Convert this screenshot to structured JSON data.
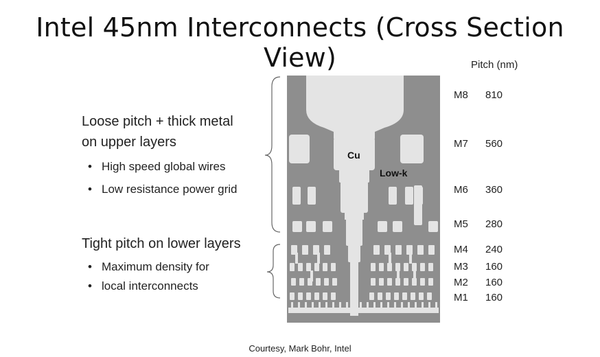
{
  "title": "Intel 45nm Interconnects (Cross Section View)",
  "upper": {
    "heading_lines": [
      "Loose pitch + thick metal",
      "on upper layers"
    ],
    "bullets": [
      "High speed global wires",
      "Low resistance power grid"
    ]
  },
  "lower": {
    "heading": "Tight pitch on lower layers",
    "bullet_lines": [
      "Maximum density for",
      "local interconnects"
    ]
  },
  "image_labels": {
    "metal": "Cu",
    "dielectric": "Low-k"
  },
  "pitch_header": "Pitch (nm)",
  "layers": [
    {
      "name": "M8",
      "pitch": "810"
    },
    {
      "name": "M7",
      "pitch": "560"
    },
    {
      "name": "M6",
      "pitch": "360"
    },
    {
      "name": "M5",
      "pitch": "280"
    },
    {
      "name": "M4",
      "pitch": "240"
    },
    {
      "name": "M3",
      "pitch": "160"
    },
    {
      "name": "M2",
      "pitch": "160"
    },
    {
      "name": "M1",
      "pitch": "160"
    }
  ],
  "credit": "Courtesy, Mark Bohr, Intel",
  "colors": {
    "substrate": "#8e8e8e",
    "metal": "#e4e4e4"
  }
}
